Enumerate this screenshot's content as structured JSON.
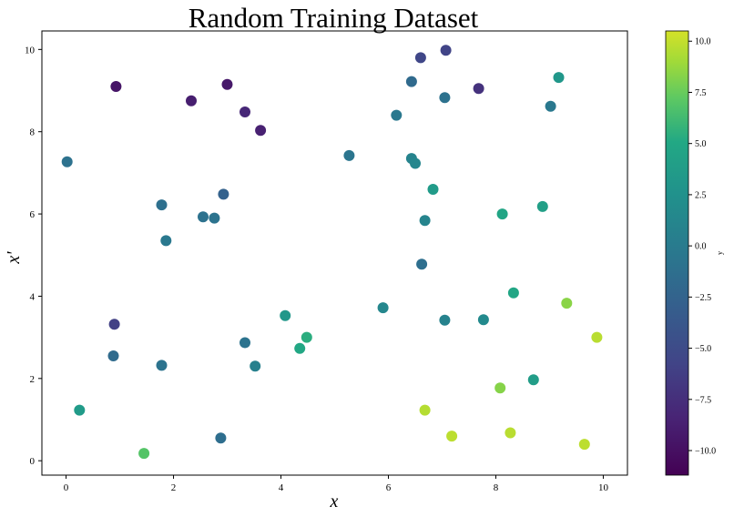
{
  "chart_data": {
    "type": "scatter",
    "title": "Random Training Dataset",
    "xlabel": "x",
    "ylabel": "x'",
    "xlim": [
      -0.45,
      10.45
    ],
    "ylim": [
      -0.35,
      10.45
    ],
    "xticks": [
      0,
      2,
      4,
      6,
      8,
      10
    ],
    "yticks": [
      0,
      2,
      4,
      6,
      8,
      10
    ],
    "grid": false,
    "colormap": "viridis",
    "colorbar": {
      "label": "y",
      "range": [
        -11.2,
        10.5
      ],
      "ticks": [
        10.0,
        7.5,
        5.0,
        2.5,
        0.0,
        -2.5,
        -5.0,
        -7.5,
        -10.0
      ],
      "tick_labels": [
        "10.0",
        "7.5",
        "5.0",
        "2.5",
        "0.0",
        "−2.5",
        "−5.0",
        "−7.5",
        "−10.0"
      ]
    },
    "points": [
      {
        "x": 0.02,
        "y": 7.27,
        "c": -1.0
      },
      {
        "x": 0.93,
        "y": 9.1,
        "c": -9.6
      },
      {
        "x": 2.33,
        "y": 8.75,
        "c": -8.9
      },
      {
        "x": 3.0,
        "y": 9.15,
        "c": -9.3
      },
      {
        "x": 3.33,
        "y": 8.48,
        "c": -8.1
      },
      {
        "x": 3.62,
        "y": 8.03,
        "c": -8.6
      },
      {
        "x": 1.78,
        "y": 6.22,
        "c": -1.2
      },
      {
        "x": 2.93,
        "y": 6.48,
        "c": -2.6
      },
      {
        "x": 2.55,
        "y": 5.93,
        "c": -1.0
      },
      {
        "x": 2.76,
        "y": 5.9,
        "c": -0.9
      },
      {
        "x": 1.86,
        "y": 5.35,
        "c": -0.3
      },
      {
        "x": 0.9,
        "y": 3.32,
        "c": -6.0
      },
      {
        "x": 0.88,
        "y": 2.55,
        "c": -1.7
      },
      {
        "x": 1.78,
        "y": 2.32,
        "c": -0.9
      },
      {
        "x": 0.25,
        "y": 1.23,
        "c": 3.6
      },
      {
        "x": 1.45,
        "y": 0.18,
        "c": 6.9
      },
      {
        "x": 2.88,
        "y": 0.55,
        "c": -1.4
      },
      {
        "x": 3.33,
        "y": 2.87,
        "c": -0.9
      },
      {
        "x": 3.52,
        "y": 2.3,
        "c": 0.6
      },
      {
        "x": 4.08,
        "y": 3.53,
        "c": 3.2
      },
      {
        "x": 4.35,
        "y": 2.73,
        "c": 5.0
      },
      {
        "x": 4.48,
        "y": 3.0,
        "c": 5.4
      },
      {
        "x": 5.27,
        "y": 7.42,
        "c": -0.7
      },
      {
        "x": 5.9,
        "y": 3.72,
        "c": 1.3
      },
      {
        "x": 6.6,
        "y": 9.8,
        "c": -5.5
      },
      {
        "x": 7.07,
        "y": 9.98,
        "c": -5.8
      },
      {
        "x": 6.43,
        "y": 9.22,
        "c": -1.8
      },
      {
        "x": 7.05,
        "y": 8.83,
        "c": -1.0
      },
      {
        "x": 7.68,
        "y": 9.05,
        "c": -7.2
      },
      {
        "x": 6.15,
        "y": 8.4,
        "c": -0.3
      },
      {
        "x": 6.43,
        "y": 7.35,
        "c": 0.9
      },
      {
        "x": 6.5,
        "y": 7.23,
        "c": 1.2
      },
      {
        "x": 6.83,
        "y": 6.6,
        "c": 3.6
      },
      {
        "x": 6.68,
        "y": 5.84,
        "c": 1.0
      },
      {
        "x": 6.62,
        "y": 4.78,
        "c": -1.3
      },
      {
        "x": 7.05,
        "y": 3.42,
        "c": 0.8
      },
      {
        "x": 7.77,
        "y": 3.43,
        "c": 1.7
      },
      {
        "x": 8.12,
        "y": 6.0,
        "c": 4.7
      },
      {
        "x": 8.87,
        "y": 6.18,
        "c": 4.0
      },
      {
        "x": 8.33,
        "y": 4.08,
        "c": 4.9
      },
      {
        "x": 9.02,
        "y": 8.62,
        "c": -0.4
      },
      {
        "x": 9.17,
        "y": 9.32,
        "c": 3.2
      },
      {
        "x": 9.32,
        "y": 3.83,
        "c": 8.4
      },
      {
        "x": 9.88,
        "y": 3.0,
        "c": 9.7
      },
      {
        "x": 8.7,
        "y": 1.97,
        "c": 3.8
      },
      {
        "x": 8.08,
        "y": 1.77,
        "c": 8.3
      },
      {
        "x": 6.68,
        "y": 1.23,
        "c": 9.6
      },
      {
        "x": 7.18,
        "y": 0.6,
        "c": 9.8
      },
      {
        "x": 8.27,
        "y": 0.68,
        "c": 9.7
      },
      {
        "x": 9.65,
        "y": 0.4,
        "c": 9.8
      }
    ]
  }
}
